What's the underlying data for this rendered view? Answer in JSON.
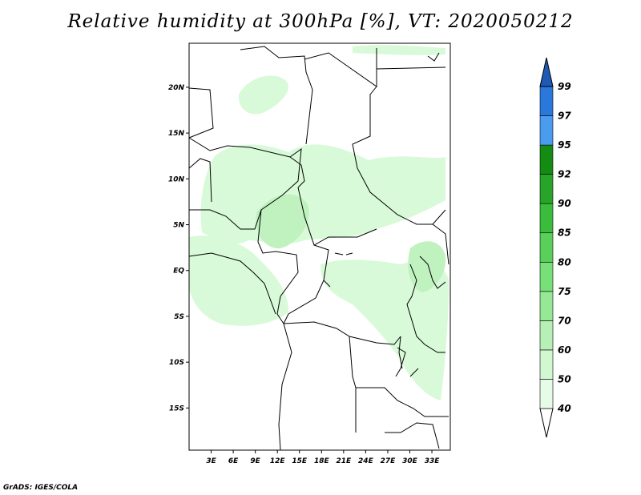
{
  "title": "Relative humidity at 300hPa [%], VT: 2020050212",
  "credit": "GrADS: IGES/COLA",
  "map": {
    "lon_range": [
      0,
      35.5
    ],
    "lat_range": [
      -19.6,
      24.8
    ],
    "x_ticks": [
      {
        "value": 3,
        "label": "3E"
      },
      {
        "value": 6,
        "label": "6E"
      },
      {
        "value": 9,
        "label": "9E"
      },
      {
        "value": 12,
        "label": "12E"
      },
      {
        "value": 15,
        "label": "15E"
      },
      {
        "value": 18,
        "label": "18E"
      },
      {
        "value": 21,
        "label": "21E"
      },
      {
        "value": 24,
        "label": "24E"
      },
      {
        "value": 27,
        "label": "27E"
      },
      {
        "value": 30,
        "label": "30E"
      },
      {
        "value": 33,
        "label": "33E"
      }
    ],
    "y_ticks": [
      {
        "value": 20,
        "label": "20N"
      },
      {
        "value": 15,
        "label": "15N"
      },
      {
        "value": 10,
        "label": "10N"
      },
      {
        "value": 5,
        "label": "5N"
      },
      {
        "value": 0,
        "label": "EQ"
      },
      {
        "value": -5,
        "label": "5S"
      },
      {
        "value": -10,
        "label": "10S"
      },
      {
        "value": -15,
        "label": "15S"
      }
    ]
  },
  "colorbar": {
    "levels": [
      {
        "label": "40",
        "color": "#e6fce6"
      },
      {
        "label": "50",
        "color": "#d2f8d2"
      },
      {
        "label": "60",
        "color": "#b6f0b6"
      },
      {
        "label": "70",
        "color": "#96e896"
      },
      {
        "label": "75",
        "color": "#78e078"
      },
      {
        "label": "80",
        "color": "#5ad05a"
      },
      {
        "label": "85",
        "color": "#3cbc3c"
      },
      {
        "label": "90",
        "color": "#28a428"
      },
      {
        "label": "92",
        "color": "#148c14"
      },
      {
        "label": "95",
        "color": "#4a9cf0"
      },
      {
        "label": "97",
        "color": "#2a78dc"
      },
      {
        "label": "99",
        "color": "#1e5ab4"
      }
    ],
    "low_color": "#ffffff"
  },
  "colors": {
    "light_green": "#d8fad8",
    "mid_green": "#bff2bf",
    "outline": "#000000"
  }
}
